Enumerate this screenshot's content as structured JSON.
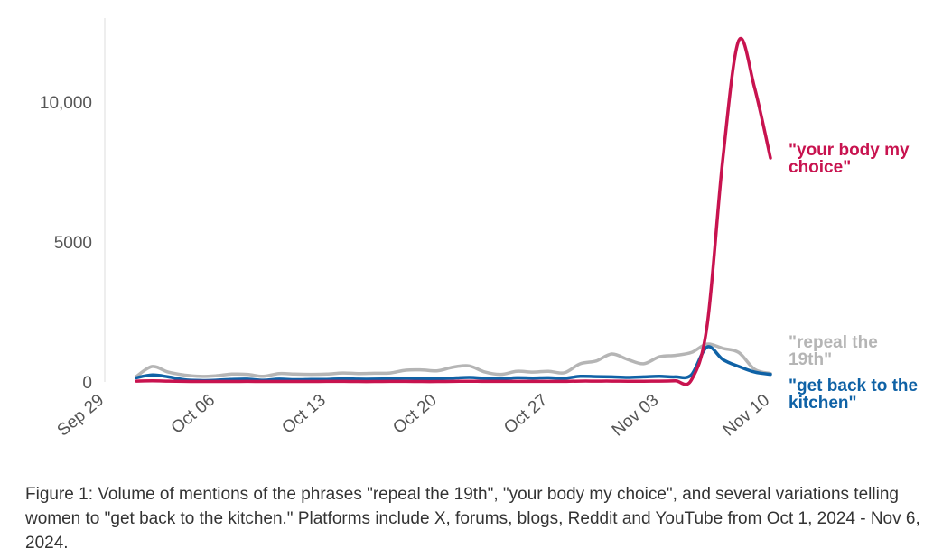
{
  "chart_data": {
    "type": "line",
    "x_axis": {
      "start": "2024-09-29",
      "end": "2024-11-10",
      "ticks": [
        {
          "date": "2024-09-29",
          "label": "Sep 29"
        },
        {
          "date": "2024-10-06",
          "label": "Oct 06"
        },
        {
          "date": "2024-10-13",
          "label": "Oct 13"
        },
        {
          "date": "2024-10-20",
          "label": "Oct 20"
        },
        {
          "date": "2024-10-27",
          "label": "Oct 27"
        },
        {
          "date": "2024-11-03",
          "label": "Nov 03"
        },
        {
          "date": "2024-11-10",
          "label": "Nov 10"
        }
      ]
    },
    "y_axis": {
      "range": [
        0,
        13000
      ],
      "ticks": [
        {
          "value": 0,
          "label": "0"
        },
        {
          "value": 5000,
          "label": "5000"
        },
        {
          "value": 10000,
          "label": "10,000"
        }
      ]
    },
    "grid": false,
    "legend": "labels at line ends",
    "series": [
      {
        "name": "\"repeal the 19th\"",
        "label_lines": [
          "\"repeal the",
          "19th\""
        ],
        "color": "#b5b5b5",
        "points": [
          [
            "2024-10-01",
            200
          ],
          [
            "2024-10-02",
            550
          ],
          [
            "2024-10-03",
            350
          ],
          [
            "2024-10-04",
            250
          ],
          [
            "2024-10-05",
            200
          ],
          [
            "2024-10-06",
            220
          ],
          [
            "2024-10-07",
            280
          ],
          [
            "2024-10-08",
            270
          ],
          [
            "2024-10-09",
            200
          ],
          [
            "2024-10-10",
            300
          ],
          [
            "2024-10-11",
            280
          ],
          [
            "2024-10-12",
            270
          ],
          [
            "2024-10-13",
            280
          ],
          [
            "2024-10-14",
            320
          ],
          [
            "2024-10-15",
            300
          ],
          [
            "2024-10-16",
            310
          ],
          [
            "2024-10-17",
            320
          ],
          [
            "2024-10-18",
            420
          ],
          [
            "2024-10-19",
            430
          ],
          [
            "2024-10-20",
            400
          ],
          [
            "2024-10-21",
            530
          ],
          [
            "2024-10-22",
            570
          ],
          [
            "2024-10-23",
            350
          ],
          [
            "2024-10-24",
            270
          ],
          [
            "2024-10-25",
            380
          ],
          [
            "2024-10-26",
            350
          ],
          [
            "2024-10-27",
            380
          ],
          [
            "2024-10-28",
            330
          ],
          [
            "2024-10-29",
            650
          ],
          [
            "2024-10-30",
            750
          ],
          [
            "2024-10-31",
            1000
          ],
          [
            "2024-11-01",
            800
          ],
          [
            "2024-11-02",
            650
          ],
          [
            "2024-11-03",
            900
          ],
          [
            "2024-11-04",
            950
          ],
          [
            "2024-11-05",
            1050
          ],
          [
            "2024-11-06",
            1350
          ],
          [
            "2024-11-07",
            1200
          ],
          [
            "2024-11-08",
            1050
          ],
          [
            "2024-11-09",
            450
          ],
          [
            "2024-11-10",
            300
          ]
        ]
      },
      {
        "name": "\"get back to the kitchen\"",
        "label_lines": [
          "\"get back to the",
          "kitchen\""
        ],
        "color": "#0f62a6",
        "points": [
          [
            "2024-10-01",
            150
          ],
          [
            "2024-10-02",
            250
          ],
          [
            "2024-10-03",
            180
          ],
          [
            "2024-10-04",
            80
          ],
          [
            "2024-10-05",
            50
          ],
          [
            "2024-10-06",
            60
          ],
          [
            "2024-10-07",
            90
          ],
          [
            "2024-10-08",
            100
          ],
          [
            "2024-10-09",
            60
          ],
          [
            "2024-10-10",
            100
          ],
          [
            "2024-10-11",
            80
          ],
          [
            "2024-10-12",
            90
          ],
          [
            "2024-10-13",
            90
          ],
          [
            "2024-10-14",
            110
          ],
          [
            "2024-10-15",
            100
          ],
          [
            "2024-10-16",
            100
          ],
          [
            "2024-10-17",
            110
          ],
          [
            "2024-10-18",
            130
          ],
          [
            "2024-10-19",
            110
          ],
          [
            "2024-10-20",
            110
          ],
          [
            "2024-10-21",
            140
          ],
          [
            "2024-10-22",
            160
          ],
          [
            "2024-10-23",
            130
          ],
          [
            "2024-10-24",
            110
          ],
          [
            "2024-10-25",
            150
          ],
          [
            "2024-10-26",
            140
          ],
          [
            "2024-10-27",
            150
          ],
          [
            "2024-10-28",
            130
          ],
          [
            "2024-10-29",
            200
          ],
          [
            "2024-10-30",
            190
          ],
          [
            "2024-10-31",
            180
          ],
          [
            "2024-11-01",
            160
          ],
          [
            "2024-11-02",
            180
          ],
          [
            "2024-11-03",
            200
          ],
          [
            "2024-11-04",
            180
          ],
          [
            "2024-11-05",
            250
          ],
          [
            "2024-11-06",
            1250
          ],
          [
            "2024-11-07",
            800
          ],
          [
            "2024-11-08",
            550
          ],
          [
            "2024-11-09",
            350
          ],
          [
            "2024-11-10",
            270
          ]
        ]
      },
      {
        "name": "\"your body my choice\"",
        "label_lines": [
          "\"your body my",
          "choice\""
        ],
        "color": "#c8134f",
        "points": [
          [
            "2024-10-01",
            30
          ],
          [
            "2024-10-02",
            40
          ],
          [
            "2024-10-03",
            30
          ],
          [
            "2024-10-04",
            20
          ],
          [
            "2024-10-05",
            15
          ],
          [
            "2024-10-06",
            15
          ],
          [
            "2024-10-07",
            15
          ],
          [
            "2024-10-08",
            20
          ],
          [
            "2024-10-09",
            15
          ],
          [
            "2024-10-10",
            15
          ],
          [
            "2024-10-11",
            15
          ],
          [
            "2024-10-12",
            15
          ],
          [
            "2024-10-13",
            20
          ],
          [
            "2024-10-14",
            20
          ],
          [
            "2024-10-15",
            15
          ],
          [
            "2024-10-16",
            15
          ],
          [
            "2024-10-17",
            20
          ],
          [
            "2024-10-18",
            20
          ],
          [
            "2024-10-19",
            15
          ],
          [
            "2024-10-20",
            15
          ],
          [
            "2024-10-21",
            20
          ],
          [
            "2024-10-22",
            25
          ],
          [
            "2024-10-23",
            20
          ],
          [
            "2024-10-24",
            20
          ],
          [
            "2024-10-25",
            20
          ],
          [
            "2024-10-26",
            20
          ],
          [
            "2024-10-27",
            20
          ],
          [
            "2024-10-28",
            20
          ],
          [
            "2024-10-29",
            30
          ],
          [
            "2024-10-30",
            30
          ],
          [
            "2024-10-31",
            30
          ],
          [
            "2024-11-01",
            25
          ],
          [
            "2024-11-02",
            25
          ],
          [
            "2024-11-03",
            30
          ],
          [
            "2024-11-04",
            40
          ],
          [
            "2024-11-05",
            60
          ],
          [
            "2024-11-06",
            2000
          ],
          [
            "2024-11-07",
            8000
          ],
          [
            "2024-11-08",
            12200
          ],
          [
            "2024-11-09",
            10500
          ],
          [
            "2024-11-10",
            8000
          ]
        ]
      }
    ]
  },
  "caption": "Figure 1: Volume of mentions of the phrases \"repeal the 19th\", \"your body my choice\", and several variations telling women to \"get back to the kitchen.\" Platforms include X, forums, blogs, Reddit and YouTube from Oct 1, 2024 - Nov 6, 2024."
}
